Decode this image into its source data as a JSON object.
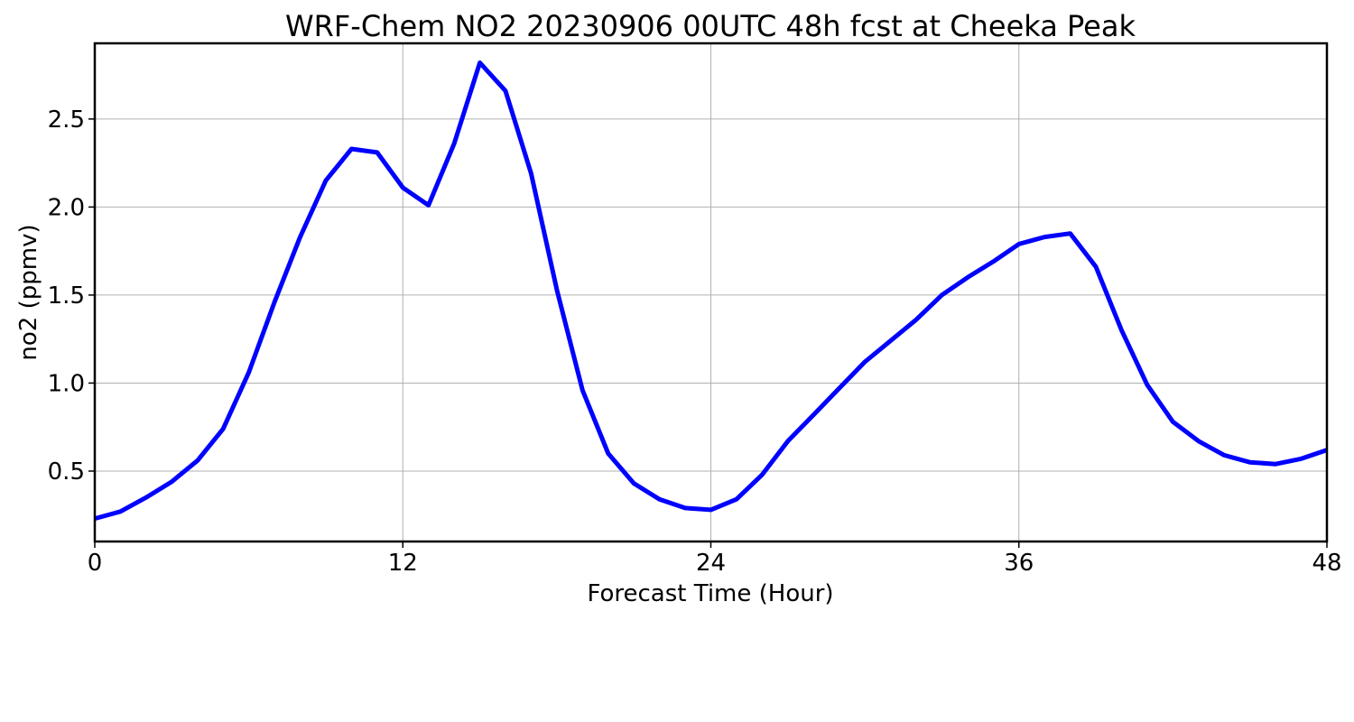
{
  "chart_data": {
    "type": "line",
    "title": "WRF-Chem NO2  20230906 00UTC 48h fcst at Cheeka Peak",
    "xlabel": "Forecast Time (Hour)",
    "ylabel": "no2  (ppmv)",
    "xlim": [
      0,
      48
    ],
    "ylim": [
      0.1,
      2.93
    ],
    "x_ticks": [
      0,
      12,
      24,
      36,
      48
    ],
    "y_ticks": [
      0.5,
      1.0,
      1.5,
      2.0,
      2.5
    ],
    "x_tick_labels": [
      "0",
      "12",
      "24",
      "36",
      "48"
    ],
    "y_tick_labels": [
      "0.5",
      "1.0",
      "1.5",
      "2.0",
      "2.5"
    ],
    "grid": true,
    "series": [
      {
        "color": "#0000ff",
        "x": [
          0,
          1,
          2,
          3,
          4,
          5,
          6,
          7,
          8,
          9,
          10,
          11,
          12,
          13,
          14,
          15,
          16,
          17,
          18,
          19,
          20,
          21,
          22,
          23,
          24,
          25,
          26,
          27,
          28,
          29,
          30,
          31,
          32,
          33,
          34,
          35,
          36,
          37,
          38,
          39,
          40,
          41,
          42,
          43,
          44,
          45,
          46,
          47,
          48
        ],
        "values": [
          0.23,
          0.27,
          0.35,
          0.44,
          0.56,
          0.74,
          1.06,
          1.46,
          1.83,
          2.15,
          2.33,
          2.31,
          2.11,
          2.01,
          2.36,
          2.82,
          2.66,
          2.19,
          1.53,
          0.96,
          0.6,
          0.43,
          0.34,
          0.29,
          0.28,
          0.34,
          0.48,
          0.67,
          0.82,
          0.97,
          1.12,
          1.24,
          1.36,
          1.5,
          1.6,
          1.69,
          1.79,
          1.83,
          1.85,
          1.66,
          1.3,
          0.99,
          0.78,
          0.67,
          0.59,
          0.55,
          0.54,
          0.57,
          0.62
        ]
      }
    ]
  }
}
